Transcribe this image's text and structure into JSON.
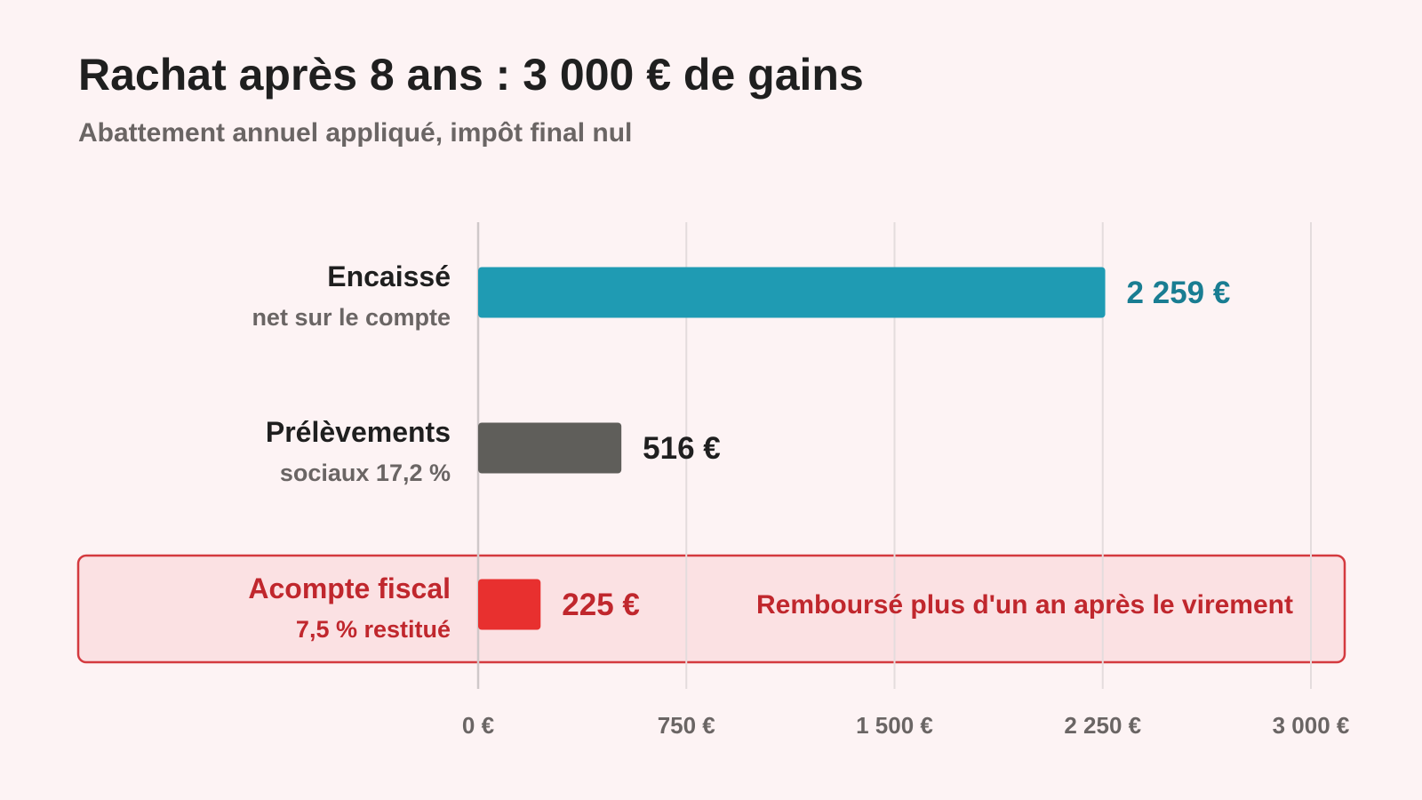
{
  "chart_data": {
    "type": "bar",
    "orientation": "horizontal",
    "title": "Rachat après 8 ans : 3 000 € de gains",
    "subtitle": "Abattement annuel appliqué, impôt final nul",
    "xlim": [
      0,
      3000
    ],
    "ticks": [
      {
        "value": 0,
        "label": "0 €"
      },
      {
        "value": 750,
        "label": "750 €"
      },
      {
        "value": 1500,
        "label": "1 500 €"
      },
      {
        "value": 2250,
        "label": "2 250 €"
      },
      {
        "value": 3000,
        "label": "3 000 €"
      }
    ],
    "grid": true,
    "categories": [
      {
        "label": "Encaissé",
        "sublabel": "net sur le compte",
        "value": 2259,
        "value_label": "2 259 €",
        "color": "#1f9bb3",
        "value_color": "#197d92",
        "label_color": "#1f1f1f",
        "sublabel_color": "#6a6564",
        "highlighted": false
      },
      {
        "label": "Prélèvements",
        "sublabel": "sociaux 17,2 %",
        "value": 516,
        "value_label": "516 €",
        "color": "#5f5e5a",
        "value_color": "#1f1f1f",
        "label_color": "#1f1f1f",
        "sublabel_color": "#6a6564",
        "highlighted": false
      },
      {
        "label": "Acompte fiscal",
        "sublabel": "7,5 % restitué",
        "value": 225,
        "value_label": "225 €",
        "color": "#e8302f",
        "value_color": "#c0272d",
        "label_color": "#c0272d",
        "sublabel_color": "#c0272d",
        "highlighted": true,
        "note": "Remboursé plus d'un an après le virement"
      }
    ],
    "colors": {
      "background": "#fdf3f4",
      "grid": "#e4dcdd",
      "axis": "#cfc8c9",
      "highlight_fill": "#fbe1e3",
      "highlight_border": "#d43a3f"
    }
  }
}
